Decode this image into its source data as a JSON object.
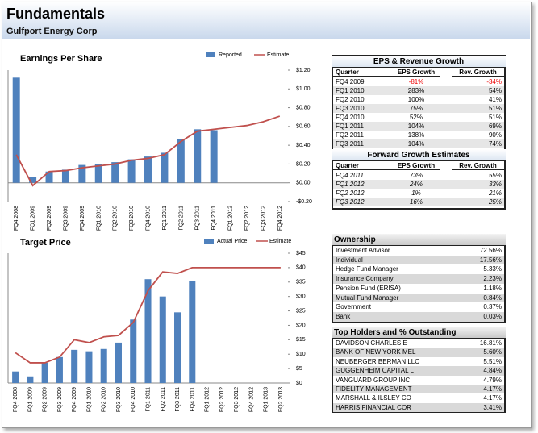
{
  "header": {
    "title": "Fundamentals",
    "subtitle": "Gulfport Energy Corp"
  },
  "chart_data": [
    {
      "type": "bar",
      "title": "Earnings Per Share",
      "categories": [
        "FQ4 2008",
        "FQ1 2009",
        "FQ2 2009",
        "FQ3 2009",
        "FQ4 2009",
        "FQ1 2010",
        "FQ2 2010",
        "FQ3 2010",
        "FQ4 2010",
        "FQ1 2011",
        "FQ2 2011",
        "FQ3 2011",
        "FQ4 2011",
        "FQ1 2012",
        "FQ2 2012",
        "FQ3 2012",
        "FQ4 2012"
      ],
      "series": [
        {
          "name": "Reported",
          "type": "bar",
          "color": "#4f81bd",
          "values": [
            1.12,
            0.06,
            0.12,
            0.14,
            0.19,
            0.2,
            0.22,
            0.25,
            0.28,
            0.32,
            0.47,
            0.57,
            0.56,
            null,
            null,
            null,
            null
          ]
        },
        {
          "name": "Estimate",
          "type": "line",
          "color": "#c0504d",
          "values": [
            0.3,
            -0.03,
            0.12,
            0.13,
            0.16,
            0.18,
            0.2,
            0.24,
            0.26,
            0.3,
            0.44,
            0.55,
            0.57,
            0.59,
            0.61,
            0.65,
            0.71
          ]
        }
      ],
      "ylim": [
        -0.2,
        1.2
      ],
      "yticks": [
        {
          "value": 1.2,
          "label": "$1.20"
        },
        {
          "value": 1,
          "label": "$1.00"
        },
        {
          "value": 0.8,
          "label": "$0.80"
        },
        {
          "value": 0.6,
          "label": "$0.60"
        },
        {
          "value": 0.4,
          "label": "$0.40"
        },
        {
          "value": 0.2,
          "label": "$0.20"
        },
        {
          "value": 0,
          "label": "$0.00"
        },
        {
          "value": -0.2,
          "label": "-$0.20"
        }
      ],
      "legend": "top-right"
    },
    {
      "type": "bar",
      "title": "Target Price",
      "categories": [
        "FQ4 2008",
        "FQ1 2009",
        "FQ2 2009",
        "FQ3 2009",
        "FQ4 2009",
        "FQ1 2010",
        "FQ2 2010",
        "FQ3 2010",
        "FQ4 2010",
        "FQ1 2011",
        "FQ2 2011",
        "FQ3 2011",
        "FQ4 2011",
        "FQ1 2012",
        "FQ2 2012",
        "FQ3 2012",
        "FQ4 2012",
        "FQ1 2013",
        "FQ2 2013"
      ],
      "series": [
        {
          "name": "Actual Price",
          "type": "bar",
          "color": "#4f81bd",
          "values": [
            4,
            2.3,
            7,
            9,
            11.5,
            11,
            11.8,
            14,
            22,
            36,
            30,
            24.5,
            35.5,
            null,
            null,
            null,
            null,
            null,
            null
          ]
        },
        {
          "name": "Estimate",
          "type": "line",
          "color": "#c0504d",
          "values": [
            10.5,
            7,
            7,
            9,
            15,
            14,
            16,
            16.5,
            21,
            32,
            38.5,
            38,
            40,
            40,
            40,
            40,
            40,
            40,
            40
          ]
        }
      ],
      "ylim": [
        0,
        45
      ],
      "yticks": [
        {
          "value": 45,
          "label": "$45"
        },
        {
          "value": 40,
          "label": "$40"
        },
        {
          "value": 35,
          "label": "$35"
        },
        {
          "value": 30,
          "label": "$30"
        },
        {
          "value": 25,
          "label": "$25"
        },
        {
          "value": 20,
          "label": "$20"
        },
        {
          "value": 15,
          "label": "$15"
        },
        {
          "value": 10,
          "label": "$10"
        },
        {
          "value": 5,
          "label": "$5"
        },
        {
          "value": 0,
          "label": "$0"
        }
      ],
      "legend": "top-right"
    }
  ],
  "tables": {
    "growth": {
      "title": "EPS & Revenue Growth",
      "columns": [
        "Quarter",
        "EPS Growth",
        "Rev. Growth"
      ],
      "rows": [
        [
          "FQ4 2009",
          "-81%",
          "-34%"
        ],
        [
          "FQ1 2010",
          "283%",
          "54%"
        ],
        [
          "FQ2 2010",
          "100%",
          "41%"
        ],
        [
          "FQ3 2010",
          "75%",
          "51%"
        ],
        [
          "FQ4 2010",
          "52%",
          "51%"
        ],
        [
          "FQ1 2011",
          "104%",
          "69%"
        ],
        [
          "FQ2 2011",
          "138%",
          "90%"
        ],
        [
          "FQ3 2011",
          "104%",
          "74%"
        ]
      ]
    },
    "forward": {
      "title": "Forward Growth Estimates",
      "columns": [
        "Quarter",
        "EPS Growth",
        "Rev. Growth"
      ],
      "rows": [
        [
          "FQ4 2011",
          "73%",
          "55%"
        ],
        [
          "FQ1 2012",
          "24%",
          "33%"
        ],
        [
          "FQ2 2012",
          "1%",
          "21%"
        ],
        [
          "FQ3 2012",
          "16%",
          "25%"
        ]
      ]
    },
    "ownership": {
      "title": "Ownership",
      "rows": [
        [
          "Investment Advisor",
          "72.56%"
        ],
        [
          "Individual",
          "17.56%"
        ],
        [
          "Hedge Fund Manager",
          "5.33%"
        ],
        [
          "Insurance Company",
          "2.23%"
        ],
        [
          "Pension Fund (ERISA)",
          "1.18%"
        ],
        [
          "Mutual Fund Manager",
          "0.84%"
        ],
        [
          "Government",
          "0.37%"
        ],
        [
          "Bank",
          "0.03%"
        ]
      ]
    },
    "holders": {
      "title": "Top Holders and % Outstanding",
      "rows": [
        [
          "DAVIDSON CHARLES E",
          "16.81%"
        ],
        [
          "BANK OF NEW YORK MEL",
          "5.60%"
        ],
        [
          "NEUBERGER BERMAN LLC",
          "5.51%"
        ],
        [
          "GUGGENHEIM CAPITAL L",
          "4.84%"
        ],
        [
          "VANGUARD GROUP INC",
          "4.79%"
        ],
        [
          "FIDELITY MANAGEMENT",
          "4.17%"
        ],
        [
          "MARSHALL & ILSLEY CO",
          "4.17%"
        ],
        [
          "HARRIS FINANCIAL COR",
          "3.41%"
        ]
      ]
    }
  }
}
